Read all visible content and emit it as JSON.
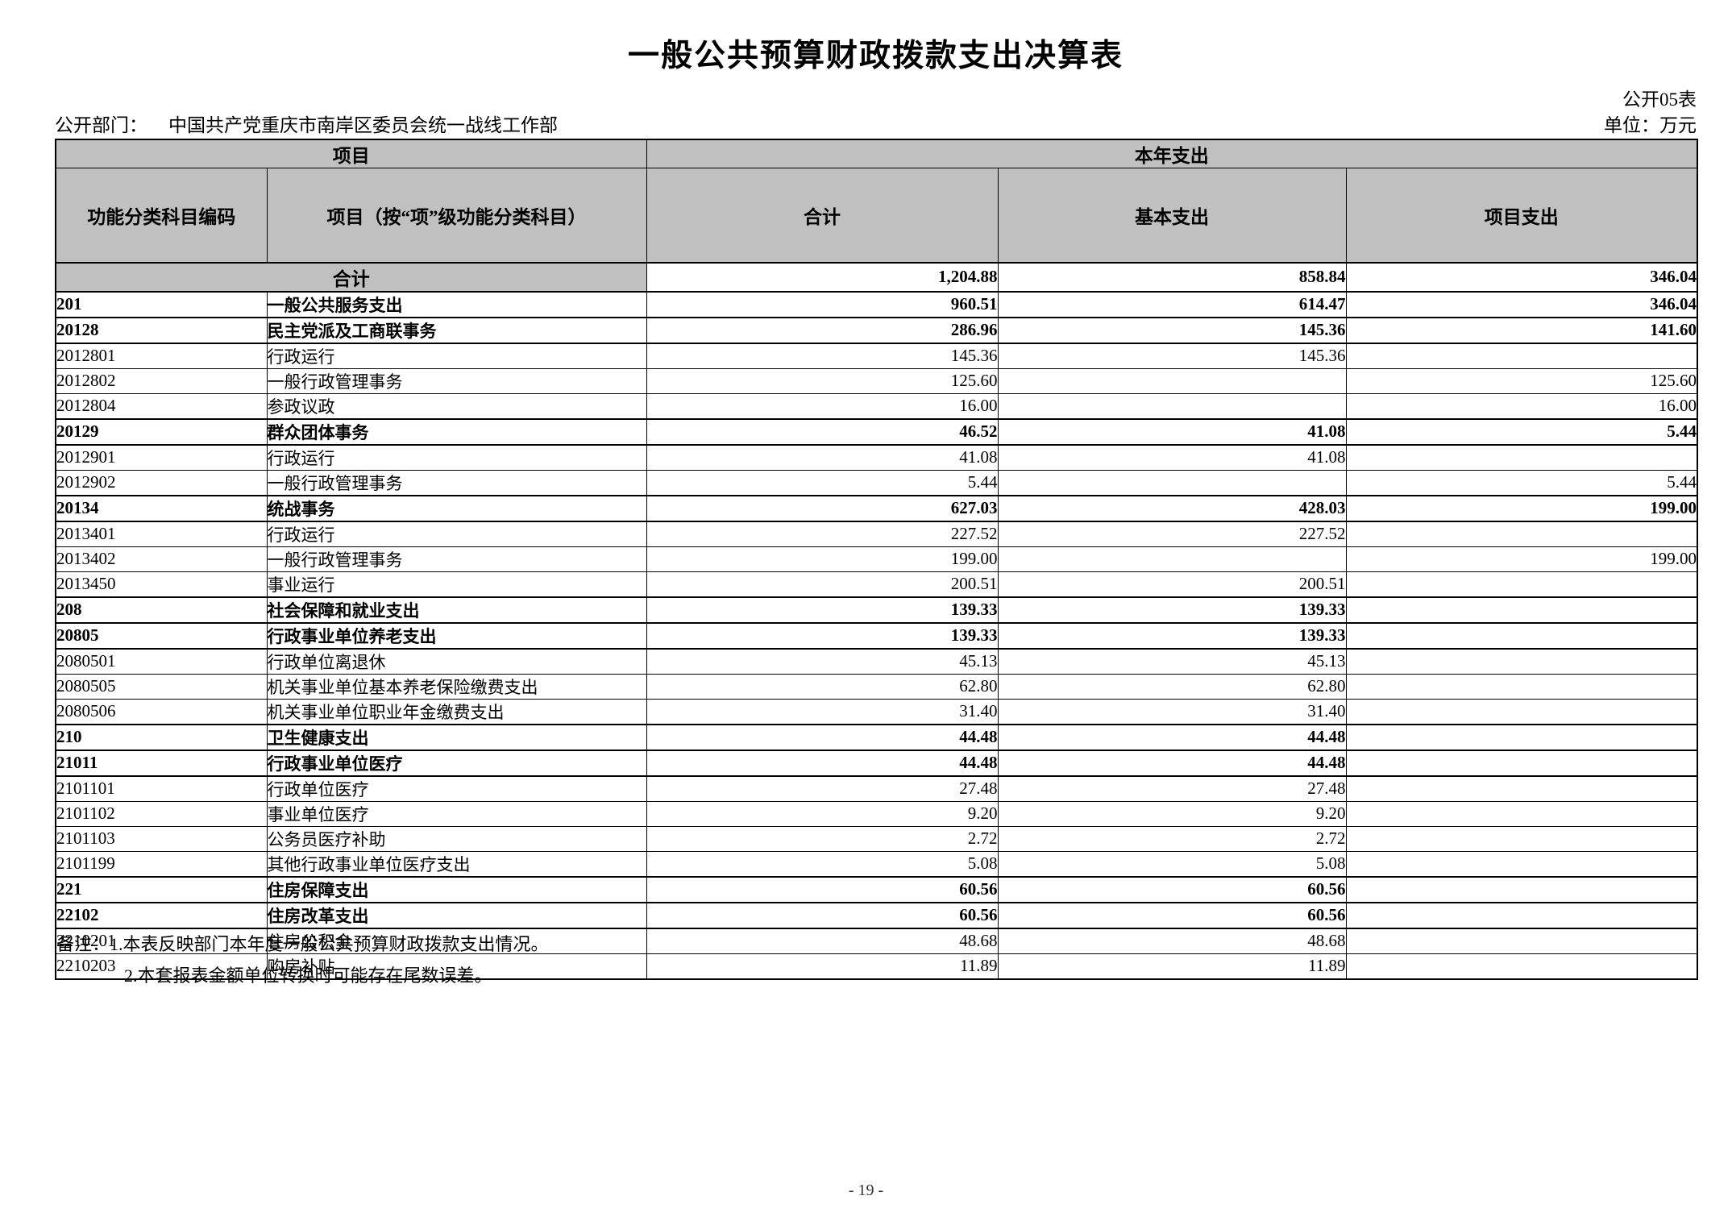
{
  "page": {
    "title": "一般公共预算财政拨款支出决算表",
    "table_code": "公开05表",
    "department_label": "公开部门：",
    "department": "中国共产党重庆市南岸区委员会统一战线工作部",
    "unit": "单位：万元",
    "page_number": "- 19 -"
  },
  "table": {
    "header": {
      "group_item": "项目",
      "group_year": "本年支出",
      "col_code": "功能分类科目编码",
      "col_item": "项目（按“项”级功能分类科目）",
      "col_total": "合计",
      "col_basic": "基本支出",
      "col_project": "项目支出"
    },
    "total_row": {
      "label": "合计",
      "total": "1,204.88",
      "basic": "858.84",
      "project": "346.04"
    },
    "rows": [
      {
        "code": "201",
        "name": "一般公共服务支出",
        "total": "960.51",
        "basic": "614.47",
        "project": "346.04",
        "bold": true
      },
      {
        "code": "20128",
        "name": "民主党派及工商联事务",
        "total": "286.96",
        "basic": "145.36",
        "project": "141.60",
        "bold": true
      },
      {
        "code": "2012801",
        "name": "行政运行",
        "total": "145.36",
        "basic": "145.36",
        "project": "",
        "bold": false
      },
      {
        "code": "2012802",
        "name": "一般行政管理事务",
        "total": "125.60",
        "basic": "",
        "project": "125.60",
        "bold": false
      },
      {
        "code": "2012804",
        "name": "参政议政",
        "total": "16.00",
        "basic": "",
        "project": "16.00",
        "bold": false
      },
      {
        "code": "20129",
        "name": "群众团体事务",
        "total": "46.52",
        "basic": "41.08",
        "project": "5.44",
        "bold": true
      },
      {
        "code": "2012901",
        "name": "行政运行",
        "total": "41.08",
        "basic": "41.08",
        "project": "",
        "bold": false
      },
      {
        "code": "2012902",
        "name": "一般行政管理事务",
        "total": "5.44",
        "basic": "",
        "project": "5.44",
        "bold": false
      },
      {
        "code": "20134",
        "name": "统战事务",
        "total": "627.03",
        "basic": "428.03",
        "project": "199.00",
        "bold": true
      },
      {
        "code": "2013401",
        "name": "行政运行",
        "total": "227.52",
        "basic": "227.52",
        "project": "",
        "bold": false
      },
      {
        "code": "2013402",
        "name": "一般行政管理事务",
        "total": "199.00",
        "basic": "",
        "project": "199.00",
        "bold": false
      },
      {
        "code": "2013450",
        "name": "事业运行",
        "total": "200.51",
        "basic": "200.51",
        "project": "",
        "bold": false
      },
      {
        "code": "208",
        "name": "社会保障和就业支出",
        "total": "139.33",
        "basic": "139.33",
        "project": "",
        "bold": true
      },
      {
        "code": "20805",
        "name": "行政事业单位养老支出",
        "total": "139.33",
        "basic": "139.33",
        "project": "",
        "bold": true
      },
      {
        "code": "2080501",
        "name": "行政单位离退休",
        "total": "45.13",
        "basic": "45.13",
        "project": "",
        "bold": false
      },
      {
        "code": "2080505",
        "name": "机关事业单位基本养老保险缴费支出",
        "total": "62.80",
        "basic": "62.80",
        "project": "",
        "bold": false
      },
      {
        "code": "2080506",
        "name": "机关事业单位职业年金缴费支出",
        "total": "31.40",
        "basic": "31.40",
        "project": "",
        "bold": false
      },
      {
        "code": "210",
        "name": "卫生健康支出",
        "total": "44.48",
        "basic": "44.48",
        "project": "",
        "bold": true
      },
      {
        "code": "21011",
        "name": "行政事业单位医疗",
        "total": "44.48",
        "basic": "44.48",
        "project": "",
        "bold": true
      },
      {
        "code": "2101101",
        "name": "行政单位医疗",
        "total": "27.48",
        "basic": "27.48",
        "project": "",
        "bold": false
      },
      {
        "code": "2101102",
        "name": "事业单位医疗",
        "total": "9.20",
        "basic": "9.20",
        "project": "",
        "bold": false
      },
      {
        "code": "2101103",
        "name": "公务员医疗补助",
        "total": "2.72",
        "basic": "2.72",
        "project": "",
        "bold": false
      },
      {
        "code": "2101199",
        "name": "其他行政事业单位医疗支出",
        "total": "5.08",
        "basic": "5.08",
        "project": "",
        "bold": false
      },
      {
        "code": "221",
        "name": "住房保障支出",
        "total": "60.56",
        "basic": "60.56",
        "project": "",
        "bold": true
      },
      {
        "code": "22102",
        "name": "住房改革支出",
        "total": "60.56",
        "basic": "60.56",
        "project": "",
        "bold": true
      },
      {
        "code": "2210201",
        "name": "住房公积金",
        "total": "48.68",
        "basic": "48.68",
        "project": "",
        "bold": false
      },
      {
        "code": "2210203",
        "name": "购房补贴",
        "total": "11.89",
        "basic": "11.89",
        "project": "",
        "bold": false
      }
    ]
  },
  "notes": {
    "line1": "备注：1.本表反映部门本年度一般公共预算财政拨款支出情况。",
    "line2": "2.本套报表金额单位转换时可能存在尾数误差。"
  }
}
